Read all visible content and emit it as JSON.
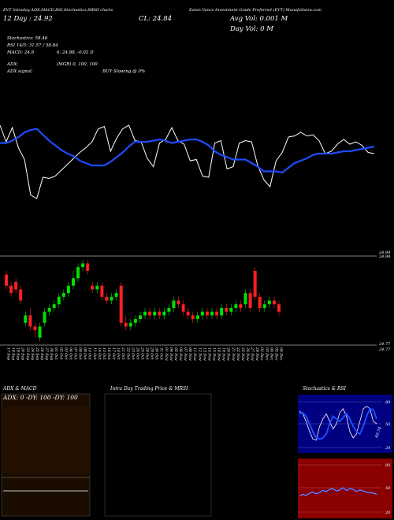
{
  "header": {
    "top_line_left": "EVT Intraday ADX,MACD,RSI,Stochastics,MRSI charts",
    "top_line_right": "Eaton Vance Investment Grade Preferred (EVT) MunafaSutra.com",
    "date_line": "12 Day : 24.92",
    "close_line": "CL: 24.84",
    "avg_vol_line": "Avg Vol: 0.001  M",
    "day_vol_line": "Day Vol: 0   M"
  },
  "info": {
    "stochastics": "Stochastics: 58.46",
    "rsi": "RSI 14/5: 31.57 / 58.84",
    "macd": "MACD: 24.8",
    "macd_detail": "6, 24.88, -0.02  D",
    "adx": "ADX:",
    "adx_detail": "(MGR) 0,  100,  100",
    "adx_signal": "ADX  signal:",
    "adx_signal_detail": "BUY Slowing @ 0%"
  },
  "chart_data": [
    {
      "type": "line",
      "title": "",
      "series": [
        {
          "name": "",
          "color": "#ffffff",
          "values": [
            74,
            60,
            72,
            55,
            45,
            15,
            12,
            30,
            29,
            31,
            36,
            41,
            46,
            51,
            55,
            60,
            71,
            73,
            52,
            63,
            71,
            74,
            61,
            60,
            46,
            39,
            59,
            62,
            72,
            61,
            58,
            44,
            45,
            31,
            30,
            59,
            61,
            37,
            39,
            59,
            61,
            60,
            40,
            28,
            22,
            44,
            51,
            64,
            65,
            68,
            65,
            66,
            61,
            50,
            52,
            58,
            62,
            58,
            60,
            57,
            51,
            50
          ]
        },
        {
          "name": "",
          "color": "#1e4bff",
          "values": [
            59,
            59,
            61,
            64,
            68,
            70,
            71,
            66,
            61,
            57,
            53,
            50,
            48,
            44,
            42,
            40,
            40,
            40,
            43,
            47,
            51,
            56,
            60,
            60,
            60,
            61,
            62,
            61,
            59,
            60,
            61,
            62,
            62,
            60,
            57,
            52,
            49,
            47,
            45,
            45,
            45,
            42,
            39,
            35,
            35,
            35,
            34,
            38,
            42,
            44,
            46,
            49,
            50,
            50,
            50,
            51,
            52,
            52,
            53,
            54,
            55,
            56
          ]
        }
      ]
    },
    {
      "type": "candlestick",
      "title": "",
      "price_labels": [
        "24.99",
        "24.98",
        "24.77",
        "24.77"
      ],
      "x_labels": [
        "17 Sep",
        "18 Sep",
        "19 Sep",
        "20 Sep",
        "23 Sep",
        "24 Sep",
        "25 Sep",
        "26 Sep",
        "27 Sep",
        "30 Sep",
        "01 Oct",
        "02 Oct",
        "03 Oct",
        "04 Oct",
        "07 Oct",
        "08 Oct",
        "09 Oct",
        "10 Oct",
        "11 Oct",
        "14 Oct",
        "15 Oct",
        "16 Oct",
        "17 Oct",
        "18 Oct",
        "21 Oct",
        "22 Oct",
        "23 Oct",
        "24 Oct",
        "25 Oct",
        "28 Oct",
        "29 Oct",
        "30 Oct",
        "31 Oct",
        "01 Nov",
        "04 Nov",
        "05 Nov",
        "06 Nov",
        "07 Nov",
        "08 Nov",
        "11 Nov",
        "12 Nov",
        "13 Nov",
        "14 Nov",
        "15 Nov",
        "18 Nov",
        "19 Nov",
        "20 Nov",
        "21 Nov",
        "22 Nov",
        "25 Nov",
        "26 Nov",
        "27 Nov",
        "29 Nov",
        "02 Dec",
        "03 Dec",
        "04 Dec",
        "05 Dec",
        "06 Dec"
      ],
      "candles": [
        [
          24.95,
          24.92,
          24.96,
          24.91
        ],
        [
          24.92,
          24.9,
          24.93,
          24.89
        ],
        [
          24.93,
          24.91,
          24.94,
          24.9
        ],
        [
          24.91,
          24.88,
          24.92,
          24.87
        ],
        [
          24.82,
          24.84,
          24.85,
          24.81
        ],
        [
          24.84,
          24.81,
          24.86,
          24.8
        ],
        [
          24.81,
          24.8,
          24.82,
          24.78
        ],
        [
          24.78,
          24.81,
          24.82,
          24.77
        ],
        [
          24.82,
          24.85,
          24.86,
          24.81
        ],
        [
          24.85,
          24.86,
          24.87,
          24.84
        ],
        [
          24.86,
          24.87,
          24.88,
          24.85
        ],
        [
          24.87,
          24.89,
          24.9,
          24.86
        ],
        [
          24.89,
          24.9,
          24.91,
          24.88
        ],
        [
          24.9,
          24.92,
          24.93,
          24.89
        ],
        [
          24.92,
          24.94,
          24.96,
          24.91
        ],
        [
          24.94,
          24.97,
          24.98,
          24.93
        ],
        [
          24.97,
          24.98,
          24.99,
          24.96
        ],
        [
          24.98,
          24.96,
          24.99,
          24.95
        ],
        [
          24.92,
          24.91,
          24.93,
          24.9
        ],
        [
          24.91,
          24.92,
          24.93,
          24.9
        ],
        [
          24.92,
          24.89,
          24.93,
          24.88
        ],
        [
          24.89,
          24.88,
          24.9,
          24.87
        ],
        [
          24.88,
          24.89,
          24.9,
          24.87
        ],
        [
          24.89,
          24.9,
          24.91,
          24.88
        ],
        [
          24.92,
          24.82,
          24.93,
          24.81
        ],
        [
          24.82,
          24.81,
          24.84,
          24.8
        ],
        [
          24.81,
          24.82,
          24.83,
          24.8
        ],
        [
          24.82,
          24.83,
          24.84,
          24.81
        ],
        [
          24.83,
          24.84,
          24.85,
          24.82
        ],
        [
          24.84,
          24.85,
          24.86,
          24.83
        ],
        [
          24.85,
          24.84,
          24.86,
          24.83
        ],
        [
          24.84,
          24.85,
          24.86,
          24.83
        ],
        [
          24.85,
          24.84,
          24.86,
          24.83
        ],
        [
          24.84,
          24.85,
          24.86,
          24.83
        ],
        [
          24.85,
          24.86,
          24.87,
          24.84
        ],
        [
          24.86,
          24.88,
          24.89,
          24.85
        ],
        [
          24.88,
          24.87,
          24.89,
          24.86
        ],
        [
          24.87,
          24.85,
          24.88,
          24.84
        ],
        [
          24.85,
          24.84,
          24.86,
          24.83
        ],
        [
          24.84,
          24.83,
          24.85,
          24.82
        ],
        [
          24.83,
          24.84,
          24.85,
          24.82
        ],
        [
          24.84,
          24.85,
          24.86,
          24.83
        ],
        [
          24.85,
          24.84,
          24.86,
          24.83
        ],
        [
          24.84,
          24.85,
          24.86,
          24.83
        ],
        [
          24.85,
          24.84,
          24.86,
          24.83
        ],
        [
          24.84,
          24.86,
          24.87,
          24.83
        ],
        [
          24.86,
          24.85,
          24.87,
          24.84
        ],
        [
          24.85,
          24.86,
          24.87,
          24.84
        ],
        [
          24.86,
          24.87,
          24.88,
          24.85
        ],
        [
          24.87,
          24.86,
          24.88,
          24.85
        ],
        [
          24.87,
          24.9,
          24.91,
          24.86
        ],
        [
          24.9,
          24.86,
          24.91,
          24.85
        ],
        [
          24.96,
          24.89,
          24.97,
          24.88
        ],
        [
          24.89,
          24.86,
          24.9,
          24.85
        ],
        [
          24.86,
          24.87,
          24.88,
          24.85
        ],
        [
          24.87,
          24.88,
          24.89,
          24.86
        ],
        [
          24.88,
          24.87,
          24.89,
          24.86
        ],
        [
          24.87,
          24.85,
          24.88,
          24.84
        ]
      ]
    },
    {
      "type": "line",
      "title": "ADX  & MACD",
      "label": "ADX: 0  -DY: 100  -DY: 100",
      "series": [
        {
          "name": "",
          "color": "#ffffff",
          "values": [
            50,
            50,
            50,
            50,
            50,
            50,
            50,
            50,
            50,
            50
          ]
        }
      ]
    },
    {
      "type": "table",
      "title": "Intra  Day Trading Price  & MRSI"
    },
    {
      "type": "line",
      "title": "Stochastics & RSI",
      "levels": [
        "80",
        "50",
        "20"
      ],
      "series": [
        {
          "name": "",
          "color": "#ffffff",
          "values": [
            75,
            70,
            55,
            35,
            20,
            18,
            45,
            60,
            70,
            55,
            40,
            50,
            72,
            80,
            65,
            35,
            22,
            30,
            55,
            80,
            85,
            80,
            55,
            50
          ]
        },
        {
          "name": "",
          "color": "#1e4bff",
          "values": [
            70,
            72,
            65,
            50,
            35,
            22,
            20,
            22,
            30,
            50,
            65,
            60,
            55,
            62,
            70,
            60,
            45,
            35,
            30,
            45,
            65,
            80,
            78,
            60
          ]
        }
      ],
      "mrsi_levels": [
        "80",
        "50",
        "20"
      ],
      "mrsi_series": [
        {
          "name": "",
          "color": "#1e4bff",
          "values": [
            35,
            38,
            36,
            40,
            42,
            39,
            41,
            45,
            43,
            47,
            48,
            44,
            46,
            50,
            45,
            48,
            47,
            43,
            46,
            44,
            42,
            41,
            40,
            38
          ]
        }
      ],
      "last_label": "60.74"
    }
  ]
}
